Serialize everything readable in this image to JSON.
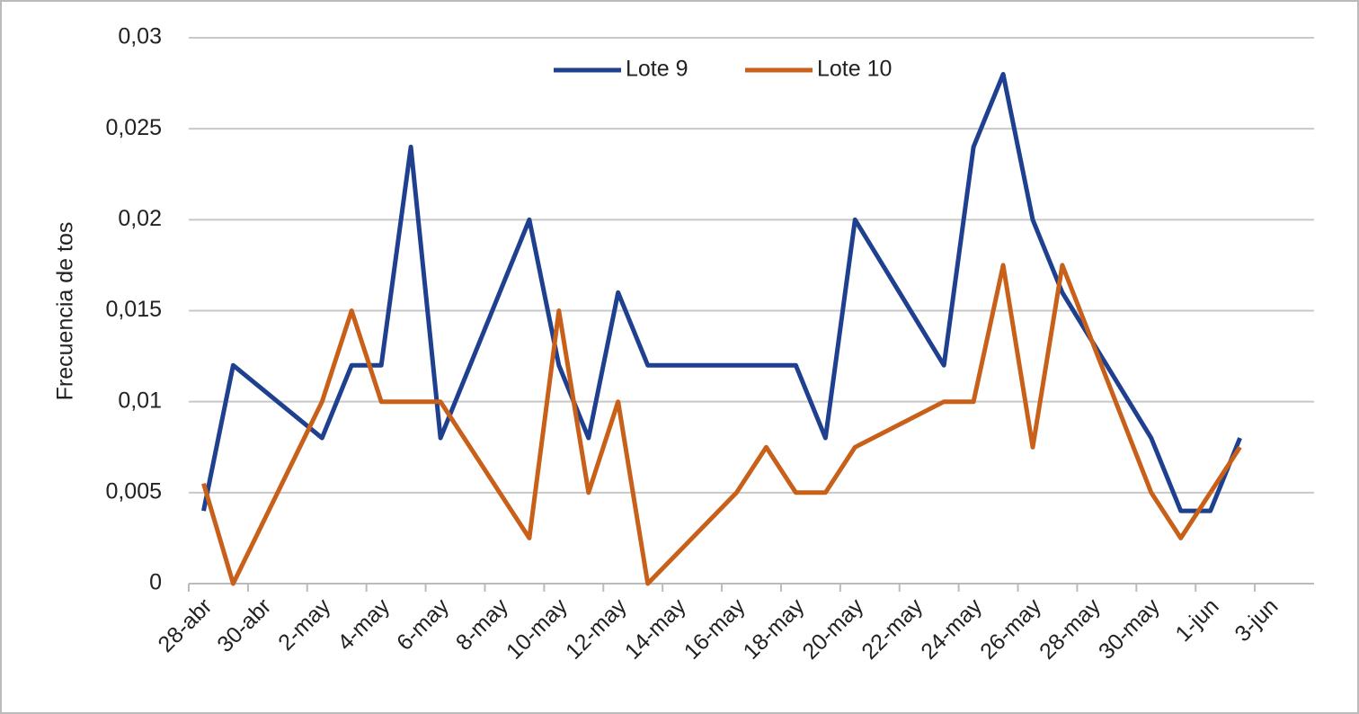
{
  "chart_data": {
    "type": "line",
    "y_label": "Frecuencia de tos",
    "x": [
      "28-abr",
      "29-abr",
      "2-may",
      "3-may",
      "4-may",
      "5-may",
      "6-may",
      "9-may",
      "10-may",
      "11-may",
      "12-may",
      "13-may",
      "16-may",
      "17-may",
      "18-may",
      "19-may",
      "20-may",
      "23-may",
      "24-may",
      "25-may",
      "26-may",
      "27-may",
      "30-may",
      "31-may",
      "1-jun",
      "2-jun"
    ],
    "series": [
      {
        "name": "Lote 9",
        "color": "#1f3f8f",
        "values": [
          0.004,
          0.012,
          0.008,
          0.012,
          0.012,
          0.024,
          0.008,
          0.02,
          0.012,
          0.008,
          0.016,
          0.012,
          0.012,
          0.012,
          0.012,
          0.008,
          0.02,
          0.012,
          0.024,
          0.028,
          0.02,
          0.016,
          0.008,
          0.004,
          0.004,
          0.008
        ]
      },
      {
        "name": "Lote 10",
        "color": "#c8601a",
        "values": [
          0.0055,
          0,
          0.01,
          0.015,
          0.01,
          0.01,
          0.01,
          0.0025,
          0.015,
          0.005,
          0.01,
          0,
          0.005,
          0.0075,
          0.005,
          0.005,
          0.0075,
          0.01,
          0.01,
          0.0175,
          0.0075,
          0.0175,
          0.005,
          0.0025,
          0.005,
          0.0075
        ]
      }
    ],
    "xlim": [
      "28-abr",
      "3-jun"
    ],
    "xticks": [
      "28-abr",
      "30-abr",
      "2-may",
      "4-may",
      "6-may",
      "8-may",
      "10-may",
      "12-may",
      "14-may",
      "16-may",
      "18-may",
      "20-may",
      "22-may",
      "24-may",
      "26-may",
      "28-may",
      "30-may",
      "1-jun",
      "3-jun"
    ],
    "ylim": [
      0,
      0.03
    ],
    "yticks": [
      0,
      {
        "value": 0.005,
        "label": "0,005"
      },
      {
        "value": 0.01,
        "label": "0,01"
      },
      {
        "value": 0.015,
        "label": "0,015"
      },
      {
        "value": 0.02,
        "label": "0,02"
      },
      {
        "value": 0.025,
        "label": "0,025"
      },
      {
        "value": 0.03,
        "label": "0,03"
      }
    ],
    "grid": true,
    "legend": "top-center"
  }
}
